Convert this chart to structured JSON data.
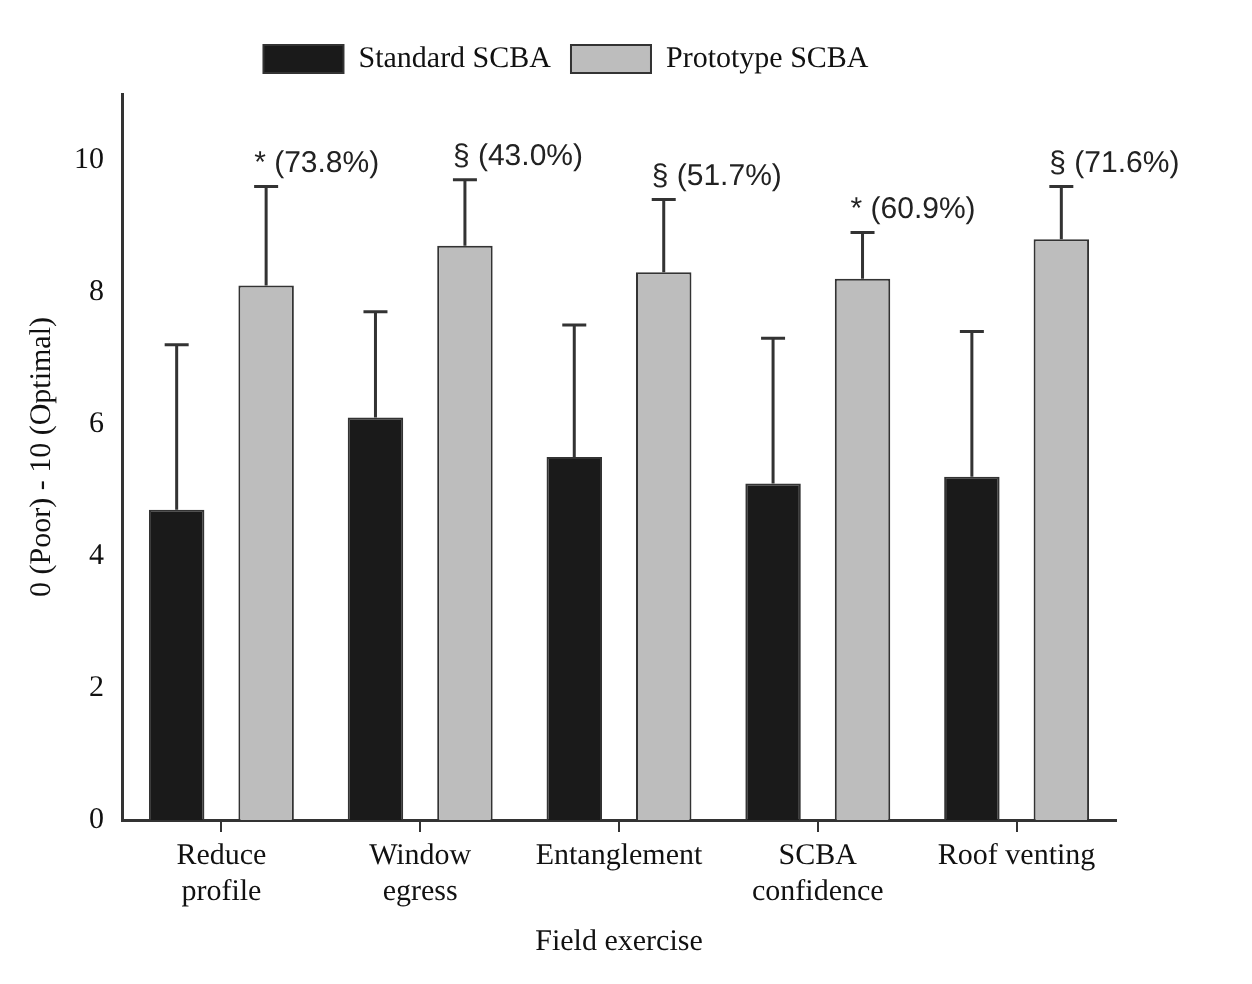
{
  "chart_data": {
    "type": "bar",
    "xlabel": "Field exercise",
    "ylabel": "0 (Poor) - 10 (Optimal)",
    "categories": [
      "Reduce profile",
      "Window egress",
      "Entanglement",
      "SCBA confidence",
      "Roof venting"
    ],
    "series": [
      {
        "name": "Standard SCBA",
        "color": "#1a1a1a",
        "values": [
          4.7,
          6.1,
          5.5,
          5.1,
          5.2
        ],
        "errors": [
          [
            4.7,
            7.2
          ],
          [
            6.1,
            7.7
          ],
          [
            5.5,
            7.5
          ],
          [
            5.1,
            7.3
          ],
          [
            5.2,
            7.4
          ]
        ]
      },
      {
        "name": "Prototype SCBA",
        "color": "#bdbdbd",
        "values": [
          8.1,
          8.7,
          8.3,
          8.2,
          8.8
        ],
        "errors": [
          [
            8.1,
            9.6
          ],
          [
            8.7,
            9.7
          ],
          [
            8.3,
            9.4
          ],
          [
            8.2,
            8.9
          ],
          [
            8.8,
            9.6
          ]
        ]
      }
    ],
    "ylim": [
      0,
      11
    ],
    "yticks": [
      0,
      2,
      4,
      6,
      8,
      10
    ],
    "grid": false,
    "legend": "top",
    "annotations": [
      "* (73.8%)",
      "§ (43.0%)",
      "§ (51.7%)",
      "* (60.9%)",
      "§ (71.6%)"
    ]
  }
}
